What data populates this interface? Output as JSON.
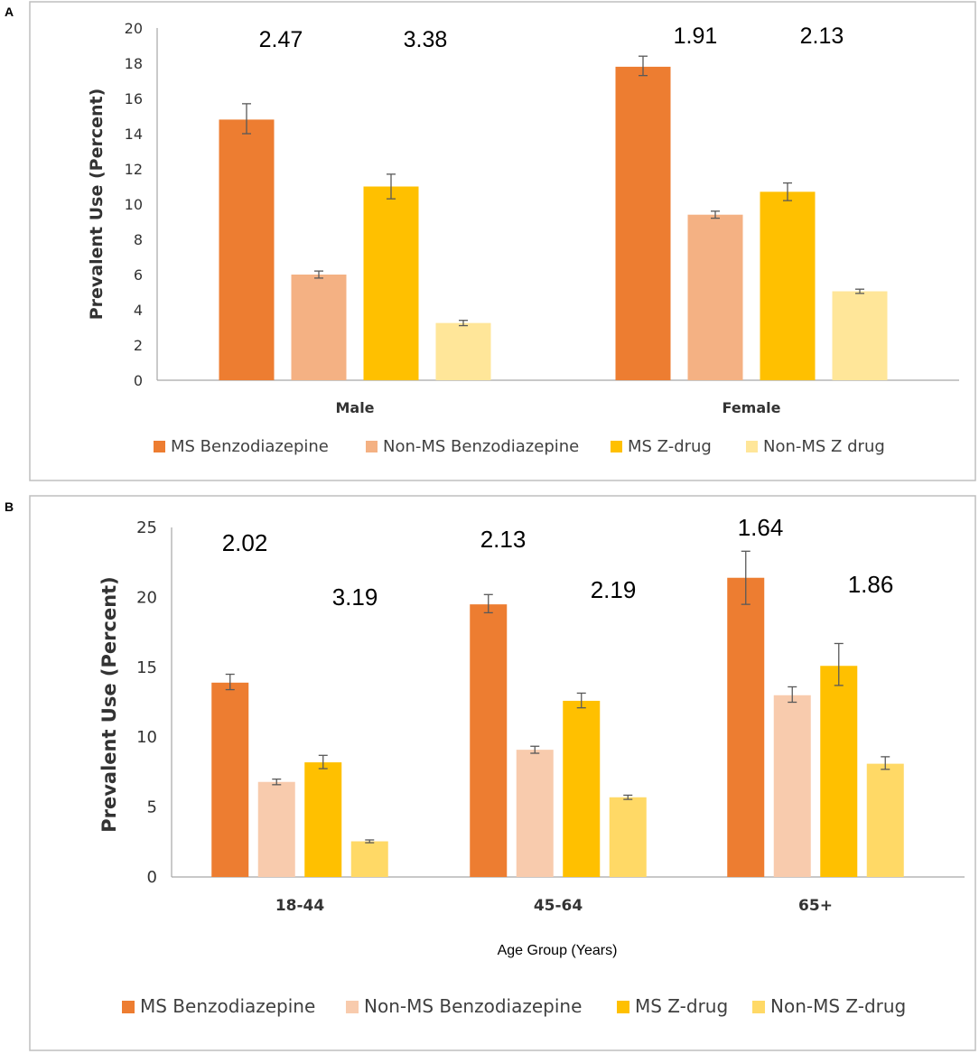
{
  "chart_data": [
    {
      "panel": "A",
      "type": "bar",
      "title": "",
      "xlabel": "",
      "ylabel": "Prevalent Use (Percent)",
      "ylim": [
        0,
        20
      ],
      "yticks": [
        0,
        2,
        4,
        6,
        8,
        10,
        12,
        14,
        16,
        18,
        20
      ],
      "grid": false,
      "categories": [
        "Male",
        "Female"
      ],
      "series": [
        {
          "name": "MS Benzodiazepine",
          "color": "#ED7D31",
          "values": [
            14.8,
            17.8
          ],
          "err_low": [
            0.8,
            0.5
          ],
          "err_high": [
            0.9,
            0.6
          ]
        },
        {
          "name": "Non-MS Benzodiazepine",
          "color": "#F4B183",
          "values": [
            6.0,
            9.4
          ],
          "err_low": [
            0.2,
            0.2
          ],
          "err_high": [
            0.2,
            0.2
          ]
        },
        {
          "name": "MS Z-drug",
          "color": "#FFC000",
          "values": [
            11.0,
            10.7
          ],
          "err_low": [
            0.7,
            0.5
          ],
          "err_high": [
            0.7,
            0.5
          ]
        },
        {
          "name": "Non-MS Z drug",
          "color": "#FFE699",
          "values": [
            3.25,
            5.05
          ],
          "err_low": [
            0.15,
            0.12
          ],
          "err_high": [
            0.15,
            0.12
          ]
        }
      ],
      "annotations": [
        {
          "category": "Male",
          "pair": "benzodiazepine",
          "text": "2.47"
        },
        {
          "category": "Male",
          "pair": "z-drug",
          "text": "3.38"
        },
        {
          "category": "Female",
          "pair": "benzodiazepine",
          "text": "1.91"
        },
        {
          "category": "Female",
          "pair": "z-drug",
          "text": "2.13"
        }
      ],
      "legend_position": "bottom"
    },
    {
      "panel": "B",
      "type": "bar",
      "title": "",
      "xlabel": "Age Group (Years)",
      "ylabel": "Prevalent Use (Percent)",
      "ylim": [
        0,
        25
      ],
      "yticks": [
        0,
        5,
        10,
        15,
        20,
        25
      ],
      "grid": false,
      "categories": [
        "18-44",
        "45-64",
        "65+"
      ],
      "series": [
        {
          "name": "MS Benzodiazepine",
          "color": "#ED7D31",
          "values": [
            13.9,
            19.5,
            21.4
          ],
          "err_low": [
            0.5,
            0.6,
            1.9
          ],
          "err_high": [
            0.6,
            0.7,
            1.9
          ]
        },
        {
          "name": "Non-MS Benzodiazepine",
          "color": "#F8CBAD",
          "values": [
            6.8,
            9.1,
            13.0
          ],
          "err_low": [
            0.2,
            0.25,
            0.5
          ],
          "err_high": [
            0.2,
            0.25,
            0.6
          ]
        },
        {
          "name": "MS Z-drug",
          "color": "#FFC000",
          "values": [
            8.2,
            12.6,
            15.1
          ],
          "err_low": [
            0.45,
            0.5,
            1.4
          ],
          "err_high": [
            0.5,
            0.55,
            1.6
          ]
        },
        {
          "name": "Non-MS Z-drug",
          "color": "#FFD966",
          "values": [
            2.55,
            5.7,
            8.1
          ],
          "err_low": [
            0.1,
            0.15,
            0.4
          ],
          "err_high": [
            0.1,
            0.15,
            0.5
          ]
        }
      ],
      "annotations": [
        {
          "category": "18-44",
          "pair": "benzodiazepine",
          "text": "2.02"
        },
        {
          "category": "18-44",
          "pair": "z-drug",
          "text": "3.19"
        },
        {
          "category": "45-64",
          "pair": "benzodiazepine",
          "text": "2.13"
        },
        {
          "category": "45-64",
          "pair": "z-drug",
          "text": "2.19"
        },
        {
          "category": "65+",
          "pair": "benzodiazepine",
          "text": "1.64"
        },
        {
          "category": "65+",
          "pair": "z-drug",
          "text": "1.86"
        }
      ],
      "legend_position": "bottom"
    }
  ]
}
